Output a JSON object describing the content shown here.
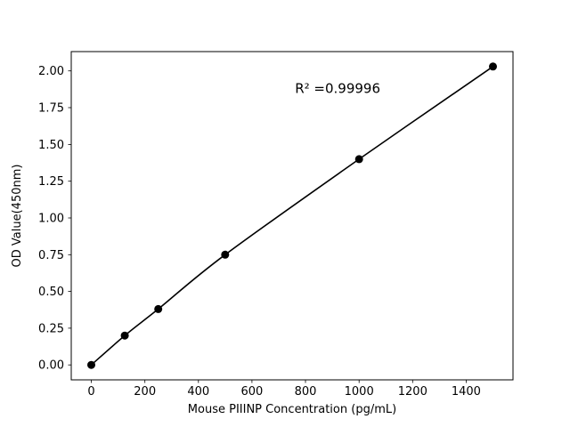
{
  "chart_data": {
    "type": "line",
    "title": "",
    "xlabel": "Mouse PIIINP Concentration (pg/mL)",
    "ylabel": "OD Value(450nm)",
    "x": [
      0,
      125,
      250,
      500,
      1000,
      1500
    ],
    "y": [
      0.0,
      0.2,
      0.38,
      0.75,
      1.4,
      2.03
    ],
    "xlim": [
      -75,
      1575
    ],
    "ylim": [
      -0.1015,
      2.1315
    ],
    "x_ticks": [
      0,
      200,
      400,
      600,
      800,
      1000,
      1200,
      1400
    ],
    "x_tick_labels": [
      "0",
      "200",
      "400",
      "600",
      "800",
      "1000",
      "1200",
      "1400"
    ],
    "y_ticks": [
      0.0,
      0.25,
      0.5,
      0.75,
      1.0,
      1.25,
      1.5,
      1.75,
      2.0
    ],
    "y_tick_labels": [
      "0.00",
      "0.25",
      "0.50",
      "0.75",
      "1.00",
      "1.25",
      "1.50",
      "1.75",
      "2.00"
    ],
    "annotation": {
      "text": "R² =0.99996",
      "x": 920,
      "y": 1.88
    },
    "colors": {
      "line": "#000000",
      "marker": "#000000",
      "text": "#000000",
      "spine": "#000000",
      "background": "#ffffff"
    },
    "grid": false,
    "legend": null,
    "marker": "circle",
    "marker_size": 4.5
  }
}
